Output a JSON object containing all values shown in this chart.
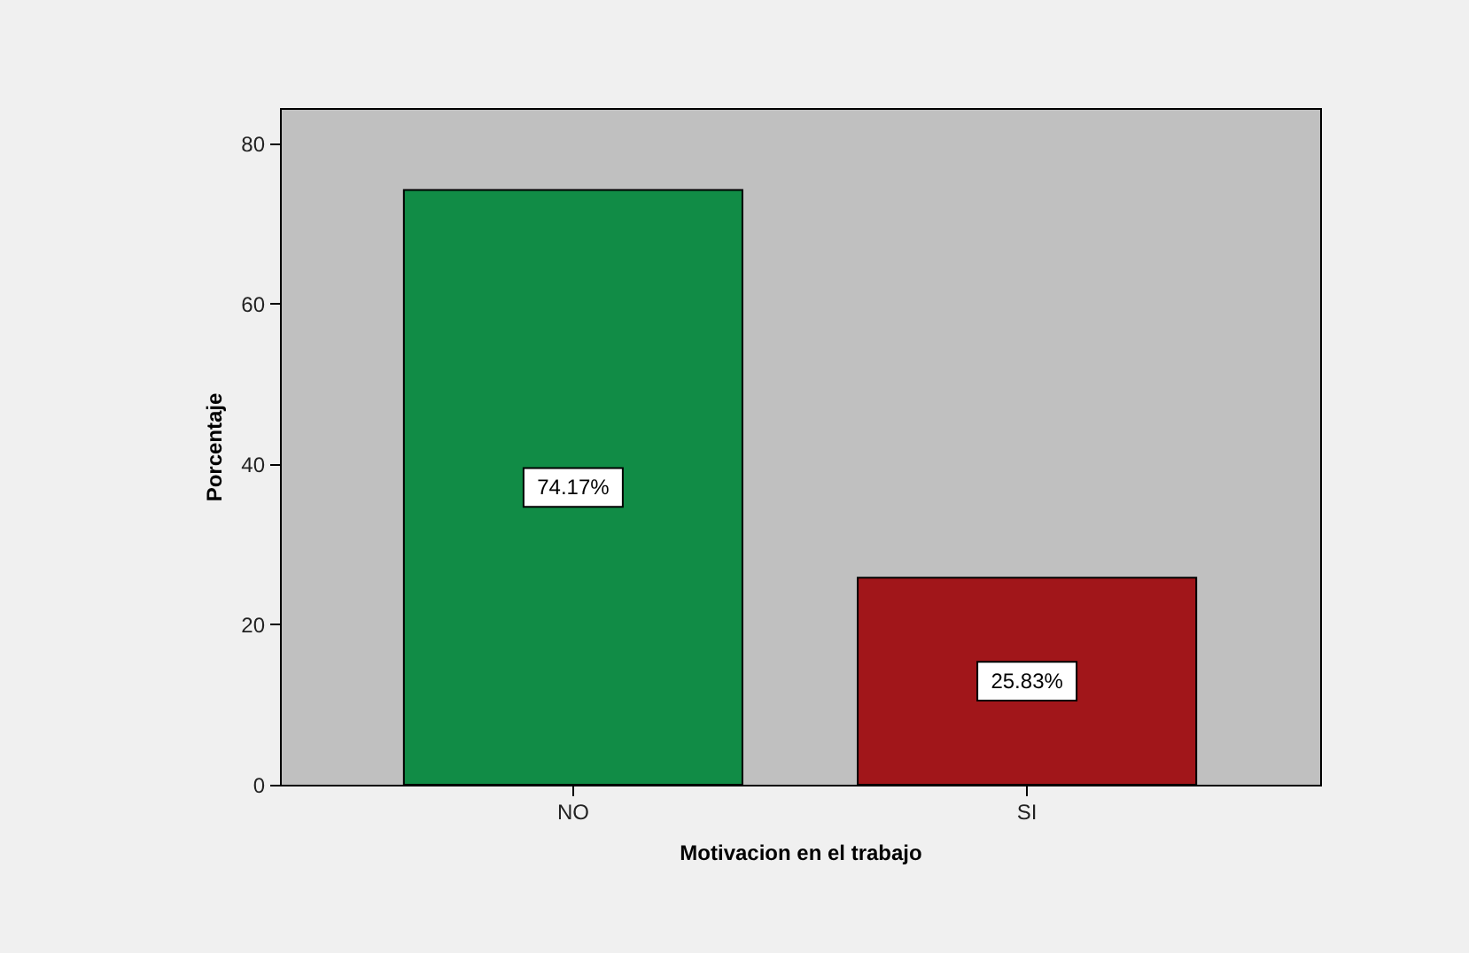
{
  "chart_data": {
    "type": "bar",
    "xlabel": "Motivacion en el trabajo",
    "ylabel": "Porcentaje",
    "categories": [
      "NO",
      "SI"
    ],
    "values": [
      74.17,
      25.83
    ],
    "colors": [
      "#118c46",
      "#a1161a"
    ],
    "value_labels": [
      "74.17%",
      "25.83%"
    ],
    "ylim": [
      0,
      84.4
    ],
    "yticks": [
      0,
      20,
      40,
      60,
      80
    ]
  }
}
